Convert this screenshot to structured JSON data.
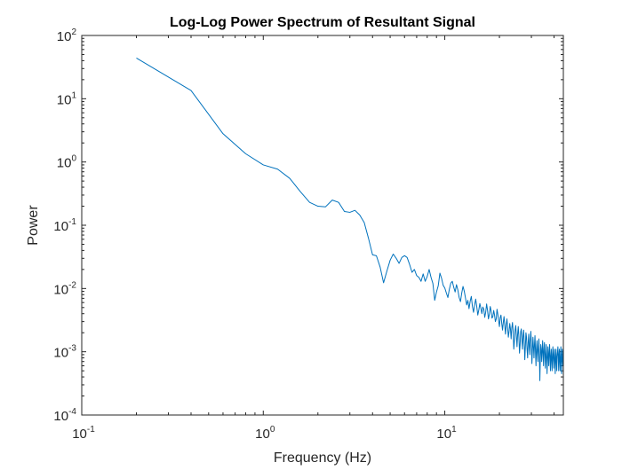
{
  "chart_data": {
    "type": "line",
    "title": "Log-Log Power Spectrum of Resultant Signal",
    "xlabel": "Frequency (Hz)",
    "ylabel": "Power",
    "xscale": "log",
    "yscale": "log",
    "xlim": [
      0.1,
      45
    ],
    "ylim": [
      0.0001,
      100
    ],
    "grid": false,
    "box": true,
    "x_ticks": [
      {
        "value": 0.1,
        "base": "10",
        "exp": "-1"
      },
      {
        "value": 1,
        "base": "10",
        "exp": "0"
      },
      {
        "value": 10,
        "base": "10",
        "exp": "1"
      }
    ],
    "y_ticks": [
      {
        "value": 0.0001,
        "base": "10",
        "exp": "-4"
      },
      {
        "value": 0.001,
        "base": "10",
        "exp": "-3"
      },
      {
        "value": 0.01,
        "base": "10",
        "exp": "-2"
      },
      {
        "value": 0.1,
        "base": "10",
        "exp": "-1"
      },
      {
        "value": 1,
        "base": "10",
        "exp": "0"
      },
      {
        "value": 10,
        "base": "10",
        "exp": "1"
      },
      {
        "value": 100,
        "base": "10",
        "exp": "2"
      }
    ],
    "series": [
      {
        "color": "#0072bd",
        "points": [
          [
            0.2,
            44
          ],
          [
            0.4,
            13.5
          ],
          [
            0.6,
            2.8
          ],
          [
            0.8,
            1.35
          ],
          [
            1.0,
            0.9
          ],
          [
            1.2,
            0.77
          ],
          [
            1.4,
            0.55
          ],
          [
            1.6,
            0.34
          ],
          [
            1.8,
            0.23
          ],
          [
            2.0,
            0.2
          ],
          [
            2.2,
            0.195
          ],
          [
            2.4,
            0.25
          ],
          [
            2.6,
            0.23
          ],
          [
            2.8,
            0.165
          ],
          [
            3.0,
            0.16
          ],
          [
            3.2,
            0.172
          ],
          [
            3.4,
            0.145
          ],
          [
            3.6,
            0.11
          ],
          [
            3.8,
            0.062
          ],
          [
            4.0,
            0.034
          ],
          [
            4.2,
            0.033
          ],
          [
            4.4,
            0.022
          ],
          [
            4.6,
            0.0123
          ],
          [
            4.8,
            0.019
          ],
          [
            5.0,
            0.028
          ],
          [
            5.2,
            0.035
          ],
          [
            5.4,
            0.03
          ],
          [
            5.6,
            0.025
          ],
          [
            5.8,
            0.031
          ],
          [
            6.0,
            0.033
          ],
          [
            6.2,
            0.031
          ],
          [
            6.4,
            0.024
          ],
          [
            6.6,
            0.018
          ],
          [
            6.8,
            0.02
          ],
          [
            7.0,
            0.016
          ],
          [
            7.2,
            0.015
          ],
          [
            7.4,
            0.013
          ],
          [
            7.6,
            0.017
          ],
          [
            7.8,
            0.013
          ],
          [
            8.0,
            0.0155
          ],
          [
            8.2,
            0.02
          ],
          [
            8.4,
            0.015
          ],
          [
            8.6,
            0.012
          ],
          [
            8.8,
            0.0065
          ],
          [
            9.0,
            0.0088
          ],
          [
            9.2,
            0.011
          ],
          [
            9.4,
            0.0175
          ],
          [
            9.6,
            0.0145
          ],
          [
            9.8,
            0.0112
          ],
          [
            10.0,
            0.0102
          ],
          [
            10.2,
            0.0085
          ],
          [
            10.4,
            0.0072
          ],
          [
            10.6,
            0.0098
          ],
          [
            10.8,
            0.0122
          ],
          [
            11.0,
            0.013
          ],
          [
            11.2,
            0.0105
          ],
          [
            11.4,
            0.0088
          ],
          [
            11.6,
            0.0115
          ],
          [
            11.8,
            0.0095
          ],
          [
            12.0,
            0.0072
          ],
          [
            12.2,
            0.0062
          ],
          [
            12.4,
            0.0085
          ],
          [
            12.6,
            0.0108
          ],
          [
            12.8,
            0.0091
          ],
          [
            13.0,
            0.0071
          ],
          [
            13.2,
            0.0055
          ],
          [
            13.4,
            0.0065
          ],
          [
            13.6,
            0.0048
          ],
          [
            13.8,
            0.0063
          ],
          [
            14.0,
            0.0075
          ],
          [
            14.2,
            0.0052
          ],
          [
            14.4,
            0.0042
          ],
          [
            14.6,
            0.0055
          ],
          [
            14.8,
            0.0068
          ],
          [
            15.0,
            0.0052
          ],
          [
            15.2,
            0.0038
          ],
          [
            15.4,
            0.0046
          ],
          [
            15.6,
            0.0058
          ],
          [
            15.8,
            0.0049
          ],
          [
            16.0,
            0.004
          ],
          [
            16.2,
            0.0051
          ],
          [
            16.4,
            0.0047
          ],
          [
            16.6,
            0.0035
          ],
          [
            16.8,
            0.0042
          ],
          [
            17.0,
            0.0057
          ],
          [
            17.2,
            0.0045
          ],
          [
            17.4,
            0.0033
          ],
          [
            17.6,
            0.0039
          ],
          [
            17.8,
            0.0052
          ],
          [
            18.0,
            0.0044
          ],
          [
            18.2,
            0.0034
          ],
          [
            18.4,
            0.0036
          ],
          [
            18.6,
            0.0045
          ],
          [
            18.8,
            0.0038
          ],
          [
            19.0,
            0.003
          ],
          [
            19.2,
            0.0033
          ],
          [
            19.4,
            0.0047
          ],
          [
            19.6,
            0.0039
          ],
          [
            19.8,
            0.0031
          ],
          [
            20.0,
            0.0025
          ],
          [
            20.2,
            0.0035
          ],
          [
            20.4,
            0.0038
          ],
          [
            20.6,
            0.0028
          ],
          [
            20.8,
            0.0022
          ],
          [
            21.0,
            0.0029
          ],
          [
            21.2,
            0.0036
          ],
          [
            21.4,
            0.0026
          ],
          [
            21.6,
            0.0019
          ],
          [
            21.8,
            0.0027
          ],
          [
            22.0,
            0.0033
          ],
          [
            22.2,
            0.0024
          ],
          [
            22.4,
            0.0017
          ],
          [
            22.6,
            0.0021
          ],
          [
            22.8,
            0.0028
          ],
          [
            23.0,
            0.0023
          ],
          [
            23.2,
            0.0016
          ],
          [
            23.4,
            0.0024
          ],
          [
            23.6,
            0.0029
          ],
          [
            23.8,
            0.0021
          ],
          [
            24.0,
            0.0011
          ],
          [
            24.2,
            0.0015
          ],
          [
            24.4,
            0.0022
          ],
          [
            24.6,
            0.0026
          ],
          [
            24.8,
            0.0018
          ],
          [
            25.0,
            0.0012
          ],
          [
            25.2,
            0.0019
          ],
          [
            25.4,
            0.0025
          ],
          [
            25.6,
            0.0017
          ],
          [
            25.8,
            0.00095
          ],
          [
            26.0,
            0.0013
          ],
          [
            26.2,
            0.0021
          ],
          [
            26.4,
            0.0023
          ],
          [
            26.6,
            0.0015
          ],
          [
            26.8,
            0.0011
          ],
          [
            27.0,
            0.0018
          ],
          [
            27.2,
            0.0022
          ],
          [
            27.4,
            0.0014
          ],
          [
            27.6,
            0.00075
          ],
          [
            27.8,
            0.0012
          ],
          [
            28.0,
            0.002
          ],
          [
            28.2,
            0.0017
          ],
          [
            28.4,
            0.0011
          ],
          [
            28.6,
            0.0008
          ],
          [
            28.8,
            0.0014
          ],
          [
            29.0,
            0.0019
          ],
          [
            29.2,
            0.0012
          ],
          [
            29.4,
            0.0009
          ],
          [
            29.6,
            0.0016
          ],
          [
            29.8,
            0.0021
          ],
          [
            30.0,
            0.0013
          ],
          [
            30.2,
            0.00065
          ],
          [
            30.4,
            0.0011
          ],
          [
            30.6,
            0.0017
          ],
          [
            30.8,
            0.0012
          ],
          [
            31.0,
            0.0008
          ],
          [
            31.2,
            0.0013
          ],
          [
            31.4,
            0.0018
          ],
          [
            31.6,
            0.001
          ],
          [
            31.8,
            0.0006
          ],
          [
            32.0,
            0.0011
          ],
          [
            32.2,
            0.0015
          ],
          [
            32.4,
            0.00095
          ],
          [
            32.6,
            0.0007
          ],
          [
            32.8,
            0.0012
          ],
          [
            33.0,
            0.0016
          ],
          [
            33.2,
            0.0009
          ],
          [
            33.4,
            0.00035
          ],
          [
            33.6,
            0.0008
          ],
          [
            33.8,
            0.0013
          ],
          [
            34.0,
            0.0011
          ],
          [
            34.2,
            0.0007
          ],
          [
            34.4,
            0.001
          ],
          [
            34.6,
            0.0015
          ],
          [
            34.8,
            0.00095
          ],
          [
            35.0,
            0.0006
          ],
          [
            35.2,
            0.0011
          ],
          [
            35.4,
            0.0014
          ],
          [
            35.6,
            0.0009
          ],
          [
            35.8,
            0.00055
          ],
          [
            36.0,
            0.0009
          ],
          [
            36.2,
            0.0013
          ],
          [
            36.4,
            0.0008
          ],
          [
            36.6,
            0.00045
          ],
          [
            36.8,
            0.0008
          ],
          [
            37.0,
            0.0012
          ],
          [
            37.2,
            0.00085
          ],
          [
            37.4,
            0.0006
          ],
          [
            37.6,
            0.001
          ],
          [
            37.8,
            0.0013
          ],
          [
            38.0,
            0.0008
          ],
          [
            38.2,
            0.0005
          ],
          [
            38.4,
            0.00085
          ],
          [
            38.6,
            0.0011
          ],
          [
            38.8,
            0.0007
          ],
          [
            39.0,
            0.0005
          ],
          [
            39.2,
            0.0009
          ],
          [
            39.4,
            0.0012
          ],
          [
            39.6,
            0.0008
          ],
          [
            39.8,
            0.00055
          ],
          [
            40.0,
            0.0009
          ],
          [
            40.2,
            0.0011
          ],
          [
            40.4,
            0.0007
          ],
          [
            40.6,
            0.00045
          ],
          [
            40.8,
            0.0008
          ],
          [
            41.0,
            0.0011
          ],
          [
            41.2,
            0.0007
          ],
          [
            41.4,
            0.0005
          ],
          [
            41.6,
            0.00085
          ],
          [
            41.8,
            0.001
          ],
          [
            42.0,
            0.0012
          ],
          [
            42.2,
            0.0008
          ],
          [
            42.4,
            0.0005
          ],
          [
            42.6,
            0.0009
          ],
          [
            42.8,
            0.0011
          ],
          [
            43.0,
            0.0007
          ],
          [
            43.2,
            0.0005
          ],
          [
            43.4,
            0.0008
          ],
          [
            43.6,
            0.0012
          ],
          [
            43.8,
            0.0008
          ],
          [
            44.0,
            0.00045
          ],
          [
            44.2,
            0.0007
          ],
          [
            44.4,
            0.0011
          ],
          [
            44.6,
            0.0009
          ],
          [
            44.8,
            0.0006
          ]
        ]
      }
    ]
  }
}
